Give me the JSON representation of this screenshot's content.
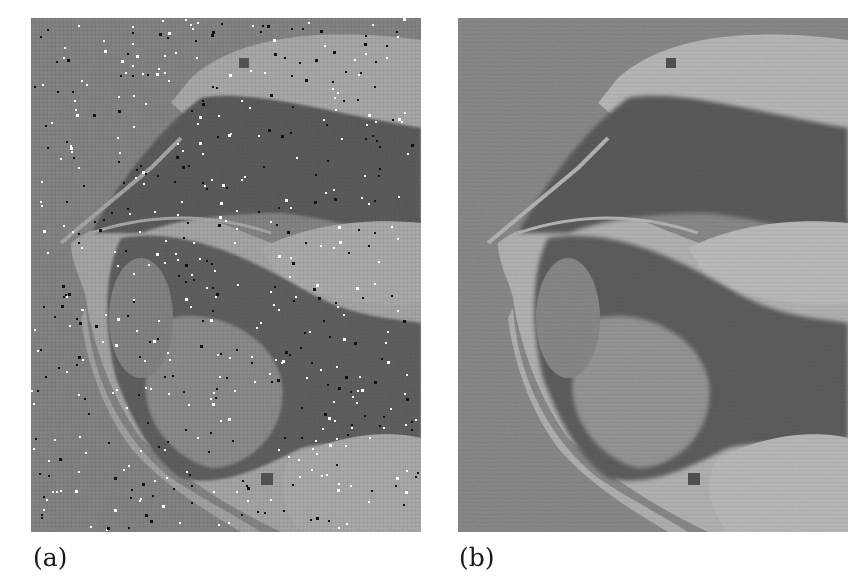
{
  "figure": {
    "panels": [
      {
        "id": "a",
        "caption": "(a)",
        "variant": "noisy",
        "salt_pepper_noise": true
      },
      {
        "id": "b",
        "caption": "(b)",
        "variant": "filtered",
        "salt_pepper_noise": false
      }
    ]
  },
  "colors": {
    "background_gray": "#8c8c8c",
    "bright_tissue": "#dcdcdc",
    "dark_tissue": "#2e2e2e",
    "mid_tissue": "#6a6a6a",
    "caption_text": "#1a1a1a"
  }
}
